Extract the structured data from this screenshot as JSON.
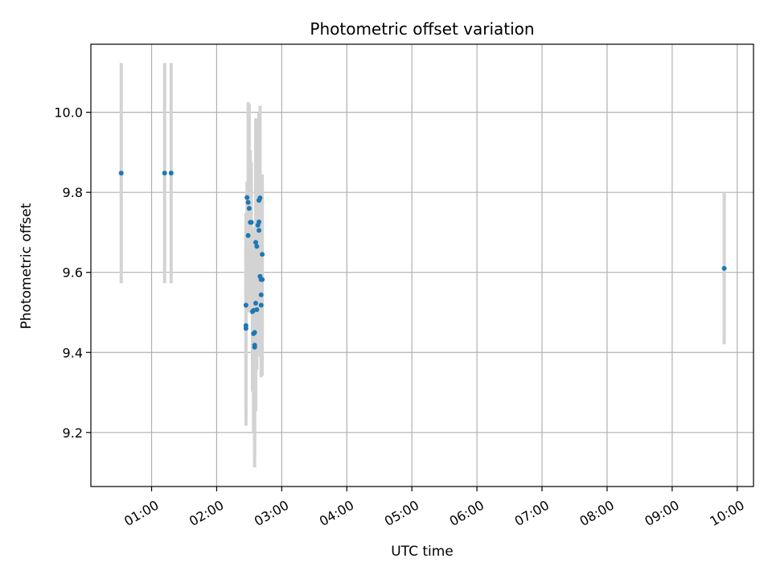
{
  "chart_data": {
    "type": "scatter",
    "title": "Photometric offset variation",
    "xlabel": "UTC time",
    "ylabel": "Photometric offset",
    "x_axis_kind": "time",
    "xlim": [
      "00:04",
      "10:15"
    ],
    "ylim": [
      9.065,
      10.17
    ],
    "x_ticks": [
      "01:00",
      "02:00",
      "03:00",
      "04:00",
      "05:00",
      "06:00",
      "07:00",
      "08:00",
      "09:00",
      "10:00"
    ],
    "y_ticks": [
      "9.2",
      "9.4",
      "9.6",
      "9.8",
      "10.0"
    ],
    "grid": true,
    "legend": "none",
    "colors": {
      "point": "#1f77b4",
      "errorbar": "#d3d3d3",
      "grid": "#b0b0b0",
      "axis": "#000000"
    },
    "series": [
      {
        "points": [
          {
            "x": "00:32",
            "y": 9.848,
            "yerr": 0.275
          },
          {
            "x": "01:12",
            "y": 9.848,
            "yerr": 0.275
          },
          {
            "x": "01:18",
            "y": 9.848,
            "yerr": 0.275
          },
          {
            "x": "02:27",
            "y": 9.467,
            "yerr": 0.25
          },
          {
            "x": "02:27",
            "y": 9.46,
            "yerr": 0.2
          },
          {
            "x": "02:27",
            "y": 9.518,
            "yerr": 0.23
          },
          {
            "x": "02:28",
            "y": 9.787,
            "yerr": 0.04
          },
          {
            "x": "02:29",
            "y": 9.692,
            "yerr": 0.14
          },
          {
            "x": "02:29",
            "y": 9.775,
            "yerr": 0.25
          },
          {
            "x": "02:30",
            "y": 9.76,
            "yerr": 0.26
          },
          {
            "x": "02:31",
            "y": 9.725,
            "yerr": 0.18
          },
          {
            "x": "02:32",
            "y": 9.725,
            "yerr": 0.15
          },
          {
            "x": "02:33",
            "y": 9.502,
            "yerr": 0.2
          },
          {
            "x": "02:34",
            "y": 9.505,
            "yerr": 0.2
          },
          {
            "x": "02:34",
            "y": 9.447,
            "yerr": 0.25
          },
          {
            "x": "02:35",
            "y": 9.418,
            "yerr": 0.28
          },
          {
            "x": "02:35",
            "y": 9.413,
            "yerr": 0.3
          },
          {
            "x": "02:35",
            "y": 9.45,
            "yerr": 0.22
          },
          {
            "x": "02:36",
            "y": 9.523,
            "yerr": 0.27
          },
          {
            "x": "02:36",
            "y": 9.675,
            "yerr": 0.31
          },
          {
            "x": "02:37",
            "y": 9.665,
            "yerr": 0.18
          },
          {
            "x": "02:37",
            "y": 9.507,
            "yerr": 0.15
          },
          {
            "x": "02:38",
            "y": 9.718,
            "yerr": 0.25
          },
          {
            "x": "02:39",
            "y": 9.705,
            "yerr": 0.2
          },
          {
            "x": "02:39",
            "y": 9.726,
            "yerr": 0.27
          },
          {
            "x": "02:39",
            "y": 9.78,
            "yerr": 0.22
          },
          {
            "x": "02:40",
            "y": 9.786,
            "yerr": 0.23
          },
          {
            "x": "02:40",
            "y": 9.59,
            "yerr": 0.2
          },
          {
            "x": "02:41",
            "y": 9.518,
            "yerr": 0.18
          },
          {
            "x": "02:41",
            "y": 9.544,
            "yerr": 0.17
          },
          {
            "x": "02:41",
            "y": 9.582,
            "yerr": 0.2
          },
          {
            "x": "02:42",
            "y": 9.582,
            "yerr": 0.24
          },
          {
            "x": "02:42",
            "y": 9.645,
            "yerr": 0.2
          },
          {
            "x": "09:48",
            "y": 9.61,
            "yerr": 0.19
          }
        ]
      }
    ]
  }
}
